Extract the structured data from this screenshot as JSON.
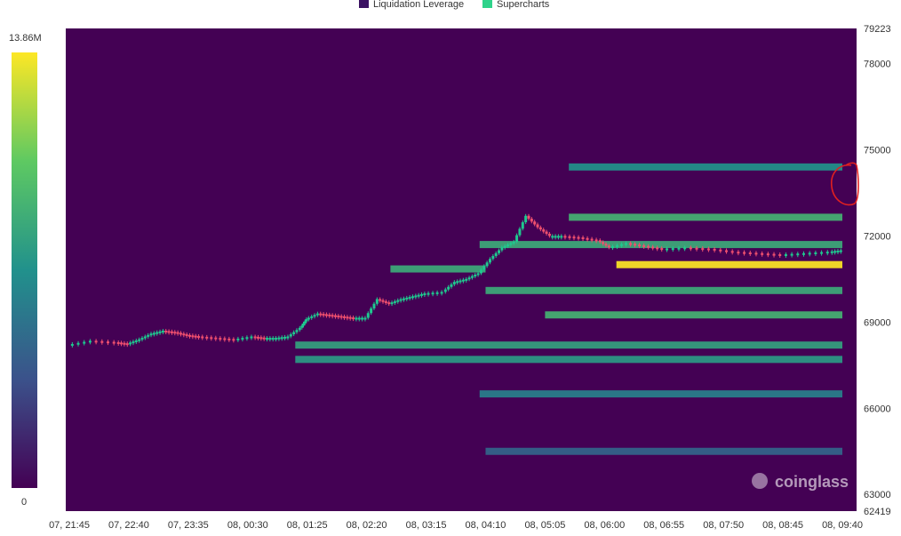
{
  "chart_data": {
    "type": "heatmap",
    "legend": [
      {
        "name": "Liquidation Leverage",
        "color": "#3b1263"
      },
      {
        "name": "Supercharts",
        "color": "#2fd38b"
      }
    ],
    "colorscale": {
      "min_label": "0",
      "max_label": "13.86M",
      "min": 0,
      "max": 13860000,
      "stops": [
        "#440154",
        "#3b528b",
        "#21918c",
        "#5ec962",
        "#fde725"
      ]
    },
    "y_range": [
      62419,
      79223
    ],
    "y_ticks": [
      {
        "value": 79223,
        "label": "79223"
      },
      {
        "value": 78000,
        "label": "78000"
      },
      {
        "value": 75000,
        "label": "75000"
      },
      {
        "value": 72000,
        "label": "72000"
      },
      {
        "value": 69000,
        "label": "69000"
      },
      {
        "value": 66000,
        "label": "66000"
      },
      {
        "value": 63000,
        "label": "63000"
      },
      {
        "value": 62419,
        "label": "62419"
      }
    ],
    "x_ticks": [
      "07, 21:45",
      "07, 22:40",
      "07, 23:35",
      "08, 00:30",
      "08, 01:25",
      "08, 02:20",
      "08, 03:15",
      "08, 04:10",
      "08, 05:05",
      "08, 06:00",
      "08, 06:55",
      "08, 07:50",
      "08, 08:45",
      "08, 09:40"
    ],
    "price_path": [
      [
        0,
        68200
      ],
      [
        0.4,
        68350
      ],
      [
        0.8,
        68300
      ],
      [
        1.0,
        68250
      ],
      [
        1.2,
        68400
      ],
      [
        1.4,
        68600
      ],
      [
        1.6,
        68700
      ],
      [
        1.8,
        68650
      ],
      [
        2.0,
        68550
      ],
      [
        2.2,
        68500
      ],
      [
        2.5,
        68450
      ],
      [
        2.8,
        68400
      ],
      [
        3.1,
        68500
      ],
      [
        3.3,
        68450
      ],
      [
        3.5,
        68450
      ],
      [
        3.7,
        68500
      ],
      [
        3.9,
        68800
      ],
      [
        4.0,
        69100
      ],
      [
        4.2,
        69300
      ],
      [
        4.4,
        69250
      ],
      [
        4.6,
        69200
      ],
      [
        4.8,
        69150
      ],
      [
        5.0,
        69150
      ],
      [
        5.2,
        69800
      ],
      [
        5.4,
        69650
      ],
      [
        5.6,
        69800
      ],
      [
        5.8,
        69900
      ],
      [
        6.0,
        70000
      ],
      [
        6.3,
        70050
      ],
      [
        6.5,
        70400
      ],
      [
        6.7,
        70500
      ],
      [
        6.9,
        70700
      ],
      [
        7.1,
        71200
      ],
      [
        7.3,
        71600
      ],
      [
        7.5,
        71800
      ],
      [
        7.7,
        72700
      ],
      [
        7.9,
        72300
      ],
      [
        8.1,
        72000
      ],
      [
        8.3,
        72000
      ],
      [
        8.6,
        71950
      ],
      [
        8.9,
        71850
      ],
      [
        9.1,
        71600
      ],
      [
        9.4,
        71750
      ],
      [
        9.7,
        71650
      ],
      [
        10.0,
        71550
      ],
      [
        10.4,
        71600
      ],
      [
        10.8,
        71550
      ],
      [
        11.2,
        71450
      ],
      [
        11.6,
        71400
      ],
      [
        12.0,
        71350
      ],
      [
        12.4,
        71400
      ],
      [
        12.8,
        71450
      ],
      [
        13.0,
        71500
      ]
    ],
    "liquidity_bands": [
      {
        "price": 71000,
        "from": 9.2,
        "to": 13,
        "value": 13860000
      },
      {
        "price": 72650,
        "from": 8.4,
        "to": 13,
        "value": 9000000
      },
      {
        "price": 74400,
        "from": 8.4,
        "to": 13,
        "value": 7000000
      },
      {
        "price": 70100,
        "from": 7.0,
        "to": 13,
        "value": 8500000
      },
      {
        "price": 69250,
        "from": 8.0,
        "to": 13,
        "value": 9000000
      },
      {
        "price": 68200,
        "from": 3.8,
        "to": 13,
        "value": 8000000
      },
      {
        "price": 67700,
        "from": 3.8,
        "to": 13,
        "value": 7500000
      },
      {
        "price": 70850,
        "from": 5.4,
        "to": 7.0,
        "value": 8500000
      },
      {
        "price": 71700,
        "from": 6.9,
        "to": 13,
        "value": 8500000
      },
      {
        "price": 66500,
        "from": 6.9,
        "to": 13,
        "value": 6000000
      },
      {
        "price": 64500,
        "from": 7.0,
        "to": 13,
        "value": 4500000
      }
    ],
    "watermark": "coinglass"
  }
}
